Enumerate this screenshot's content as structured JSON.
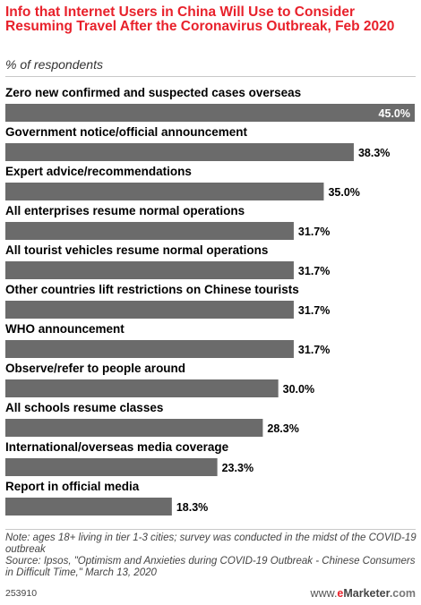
{
  "header": {
    "title": "Info that Internet Users in China Will Use to Consider Resuming Travel After the Coronavirus Outbreak, Feb 2020",
    "subtitle": "% of respondents"
  },
  "chart_data": {
    "type": "bar",
    "orientation": "horizontal",
    "categories": [
      "Zero new confirmed and suspected cases overseas",
      "Government notice/official announcement",
      "Expert advice/recommendations",
      "All enterprises resume normal operations",
      "All tourist vehicles resume normal operations",
      "Other countries lift restrictions on Chinese tourists",
      "WHO announcement",
      "Observe/refer to people around",
      "All schools resume classes",
      "International/overseas media coverage",
      "Report in official media"
    ],
    "values": [
      45.0,
      38.3,
      35.0,
      31.7,
      31.7,
      31.7,
      31.7,
      30.0,
      28.3,
      23.3,
      18.3
    ],
    "value_labels": [
      "45.0%",
      "38.3%",
      "35.0%",
      "31.7%",
      "31.7%",
      "31.7%",
      "31.7%",
      "30.0%",
      "28.3%",
      "23.3%",
      "18.3%"
    ],
    "xlim": [
      0,
      45
    ],
    "bar_color": "#6b6b6b",
    "grid": false
  },
  "footer": {
    "note": "Note: ages 18+ living in tier 1-3 cities; survey was conducted in the midst of the COVID-19 outbreak",
    "source": "Source: Ipsos, \"Optimism and Anxieties during COVID-19 Outbreak - Chinese Consumers in Difficult Time,\" March 13, 2020",
    "chart_id": "253910",
    "brand_prefix": "www.",
    "brand_e": "e",
    "brand_marketer": "Marketer",
    "brand_suffix": ".com"
  },
  "colors": {
    "title": "#e8212b",
    "bar": "#6b6b6b"
  }
}
